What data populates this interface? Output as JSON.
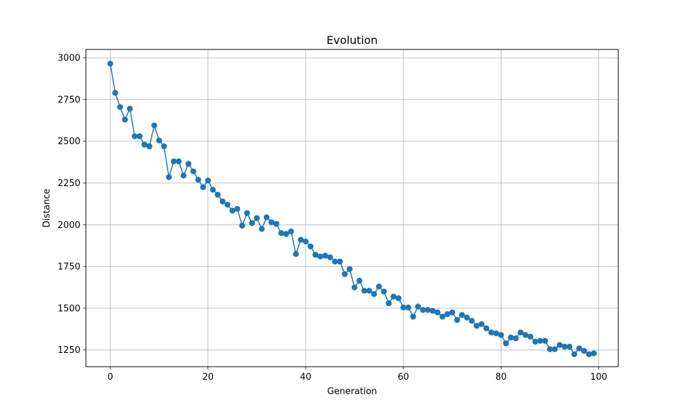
{
  "chart_data": {
    "type": "line",
    "title": "Evolution",
    "xlabel": "Generation",
    "ylabel": "Distance",
    "xlim": [
      -5,
      104
    ],
    "ylim": [
      1150,
      3050
    ],
    "xticks": [
      0,
      20,
      40,
      60,
      80,
      100
    ],
    "yticks": [
      1250,
      1500,
      1750,
      2000,
      2250,
      2500,
      2750,
      3000
    ],
    "grid": true,
    "marker": "circle",
    "line_color": "#1f77b4",
    "series": [
      {
        "x": [
          0,
          1,
          2,
          3,
          4,
          5,
          6,
          7,
          8,
          9,
          10,
          11,
          12,
          13,
          14,
          15,
          16,
          17,
          18,
          19,
          20,
          21,
          22,
          23,
          24,
          25,
          26,
          27,
          28,
          29,
          30,
          31,
          32,
          33,
          34,
          35,
          36,
          37,
          38,
          39,
          40,
          41,
          42,
          43,
          44,
          45,
          46,
          47,
          48,
          49,
          50,
          51,
          52,
          53,
          54,
          55,
          56,
          57,
          58,
          59,
          60,
          61,
          62,
          63,
          64,
          65,
          66,
          67,
          68,
          69,
          70,
          71,
          72,
          73,
          74,
          75,
          76,
          77,
          78,
          79,
          80,
          81,
          82,
          83,
          84,
          85,
          86,
          87,
          88,
          89,
          90,
          91,
          92,
          93,
          94,
          95,
          96,
          97,
          98,
          99
        ],
        "values": [
          2965,
          2790,
          2705,
          2630,
          2695,
          2530,
          2530,
          2480,
          2470,
          2595,
          2505,
          2470,
          2285,
          2380,
          2380,
          2295,
          2365,
          2320,
          2270,
          2225,
          2265,
          2210,
          2180,
          2140,
          2120,
          2085,
          2095,
          1995,
          2070,
          2010,
          2040,
          1975,
          2045,
          2015,
          2005,
          1950,
          1945,
          1960,
          1825,
          1910,
          1900,
          1870,
          1820,
          1810,
          1815,
          1805,
          1780,
          1780,
          1705,
          1735,
          1625,
          1665,
          1605,
          1605,
          1585,
          1630,
          1600,
          1530,
          1570,
          1560,
          1505,
          1505,
          1450,
          1510,
          1490,
          1490,
          1485,
          1475,
          1450,
          1465,
          1475,
          1430,
          1460,
          1445,
          1425,
          1395,
          1405,
          1380,
          1355,
          1350,
          1340,
          1290,
          1325,
          1320,
          1355,
          1340,
          1330,
          1300,
          1305,
          1305,
          1255,
          1255,
          1280,
          1270,
          1270,
          1225,
          1260,
          1245,
          1225,
          1230
        ]
      }
    ]
  }
}
